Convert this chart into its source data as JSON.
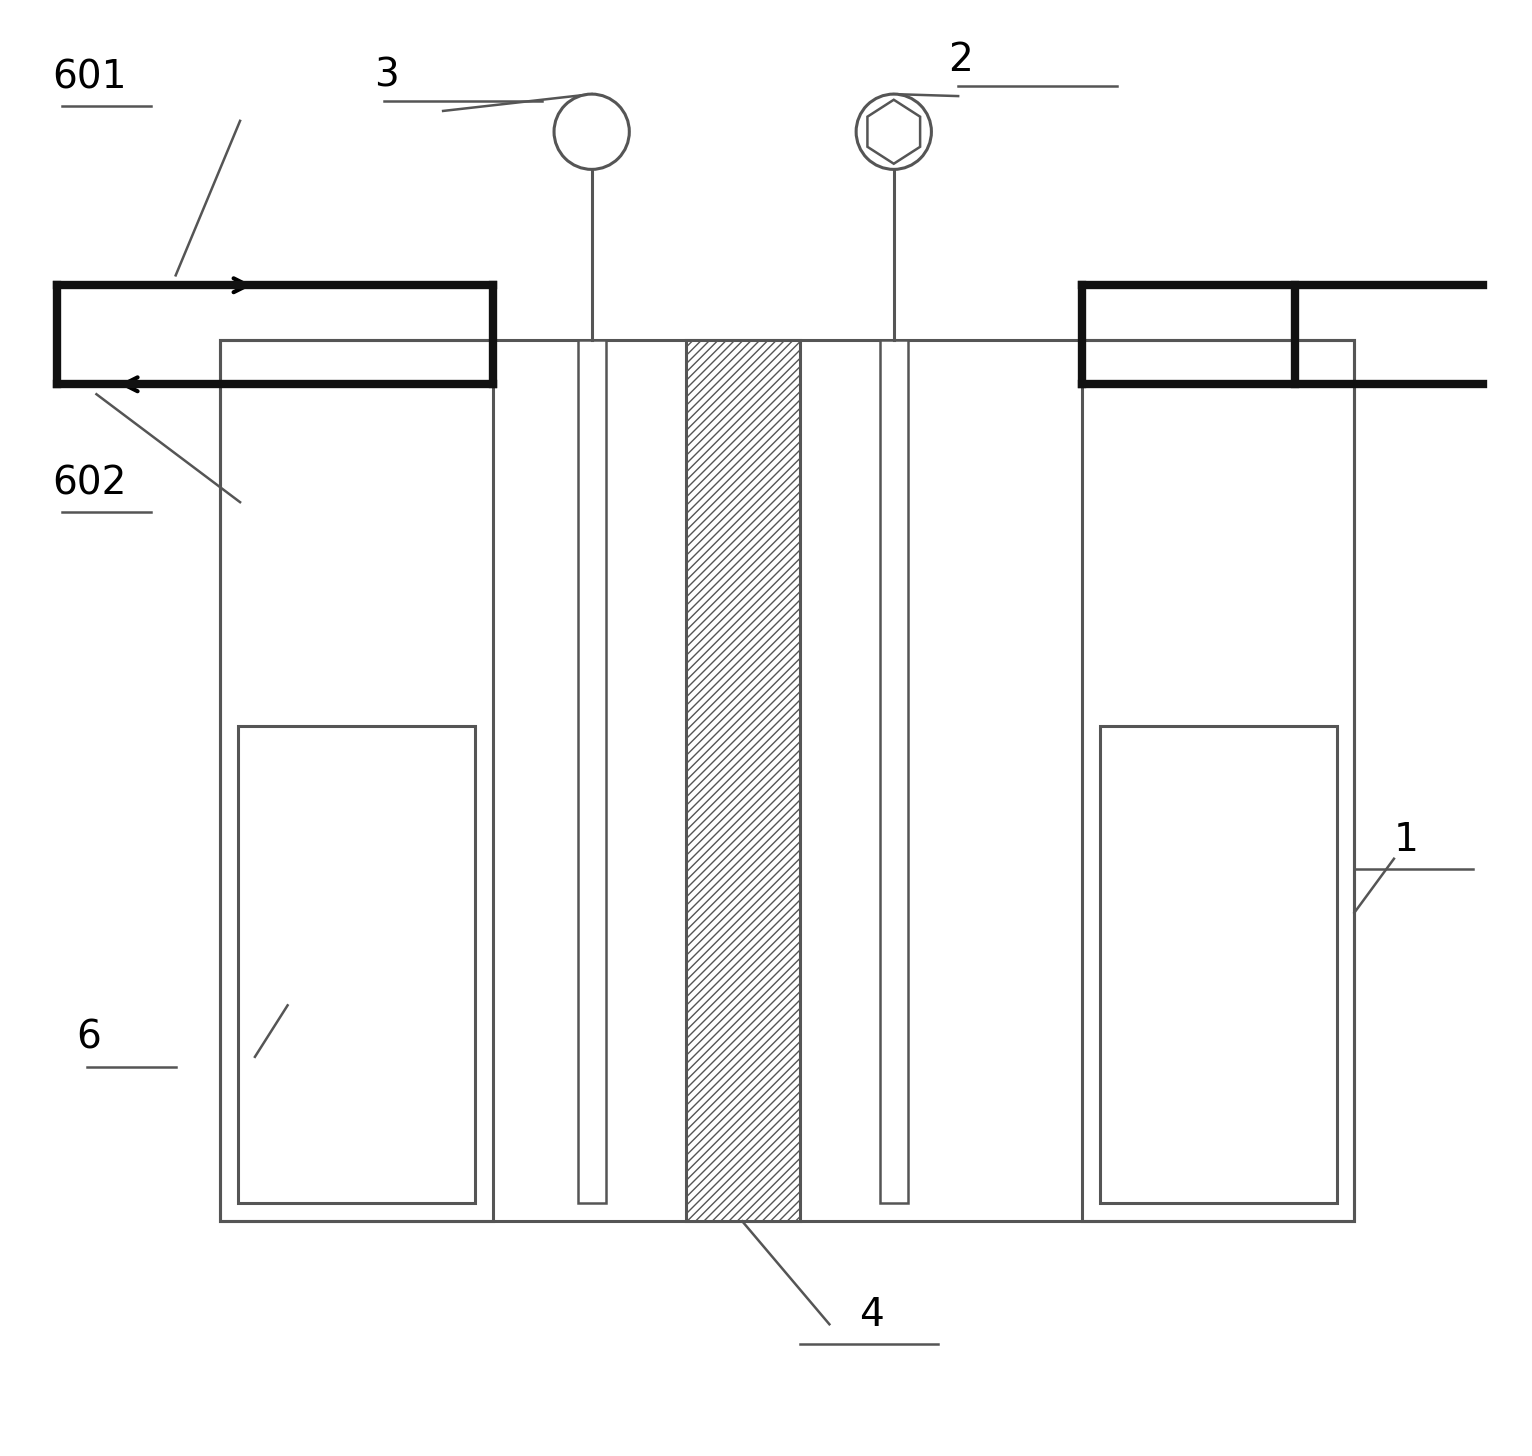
{
  "bg_color": "#ffffff",
  "line_color": "#555555",
  "thick_line_color": "#111111",
  "fig_width": 15.32,
  "fig_height": 14.56,
  "lw_thin": 1.8,
  "lw_med": 2.2,
  "lw_thick": 6.0
}
